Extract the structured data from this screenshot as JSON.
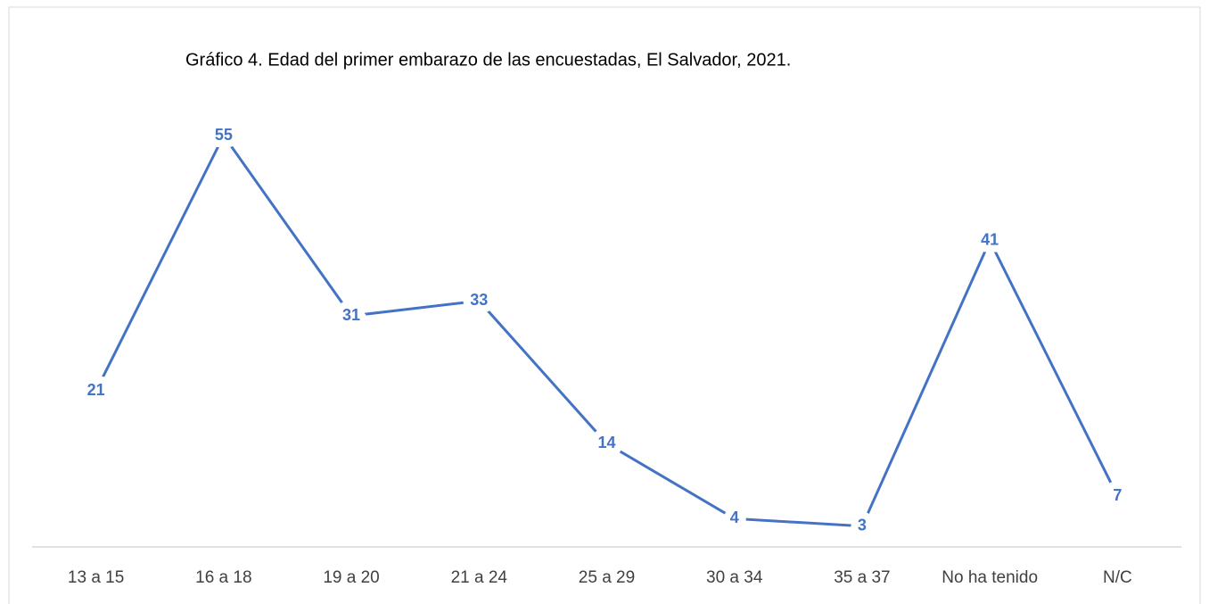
{
  "chart_data": {
    "type": "line",
    "title": "Gráfico 4. Edad del primer embarazo de las encuestadas, El Salvador, 2021.",
    "categories": [
      "13 a 15",
      "16 a 18",
      "19 a 20",
      "21  a 24",
      "25 a 29",
      "30 a 34",
      "35 a 37",
      "No ha tenido",
      "N/C"
    ],
    "values": [
      21,
      55,
      31,
      33,
      14,
      4,
      3,
      41,
      7
    ],
    "color": "#4472c4"
  }
}
